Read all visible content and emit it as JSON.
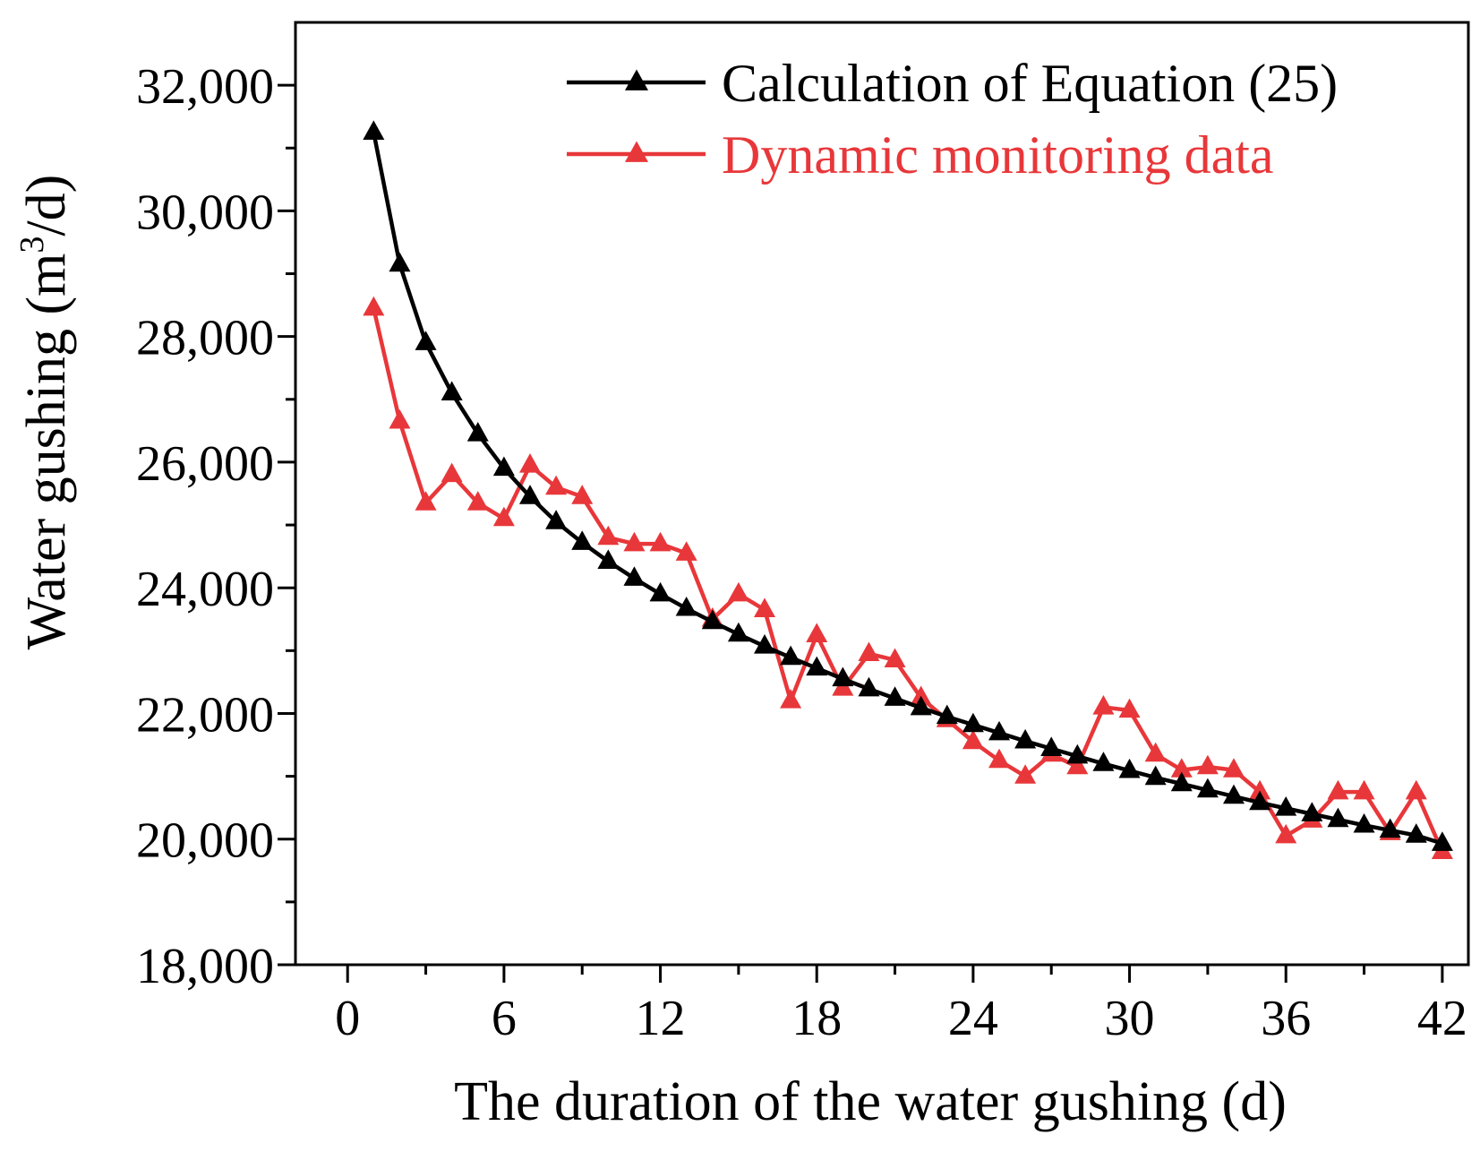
{
  "chart_data": {
    "type": "line",
    "title": "",
    "xlabel": "The duration of the water gushing (d)",
    "ylabel_main": "Water gushing (m",
    "ylabel_sup": "3",
    "ylabel_tail": "/d)",
    "xlim": [
      -2,
      43
    ],
    "ylim": [
      18000,
      33000
    ],
    "x_ticks": [
      0,
      6,
      12,
      18,
      24,
      30,
      36,
      42
    ],
    "x_tick_labels": [
      "0",
      "6",
      "12",
      "18",
      "24",
      "30",
      "36",
      "42"
    ],
    "y_ticks": [
      18000,
      20000,
      22000,
      24000,
      26000,
      28000,
      30000,
      32000
    ],
    "y_tick_labels": [
      "18,000",
      "20,000",
      "22,000",
      "24,000",
      "26,000",
      "28,000",
      "30,000",
      "32,000"
    ],
    "legend_position": "top-right",
    "x": [
      1,
      2,
      3,
      4,
      5,
      6,
      7,
      8,
      9,
      10,
      11,
      12,
      13,
      14,
      15,
      16,
      17,
      18,
      19,
      20,
      21,
      22,
      23,
      24,
      25,
      26,
      27,
      28,
      29,
      30,
      31,
      32,
      33,
      34,
      35,
      36,
      37,
      38,
      39,
      40,
      41,
      42
    ],
    "series": [
      {
        "name": "Calculation of Equation (25)",
        "color": "#000000",
        "marker": "triangle",
        "values": [
          31250,
          29150,
          27900,
          27100,
          26450,
          25900,
          25450,
          25050,
          24720,
          24420,
          24150,
          23900,
          23670,
          23460,
          23260,
          23070,
          22890,
          22720,
          22550,
          22390,
          22240,
          22090,
          21950,
          21820,
          21690,
          21560,
          21440,
          21320,
          21200,
          21090,
          20980,
          20880,
          20780,
          20680,
          20580,
          20490,
          20400,
          20310,
          20220,
          20140,
          20060,
          19930
        ]
      },
      {
        "name": "Dynamic monitoring data",
        "color": "#e8373a",
        "marker": "triangle",
        "values": [
          28450,
          26650,
          25350,
          25800,
          25350,
          25100,
          25950,
          25600,
          25450,
          24800,
          24700,
          24700,
          24550,
          23500,
          23900,
          23650,
          22200,
          23250,
          22400,
          22950,
          22850,
          22250,
          21900,
          21550,
          21250,
          21000,
          21350,
          21150,
          22100,
          22050,
          21350,
          21100,
          21150,
          21100,
          20750,
          20050,
          20300,
          20750,
          20750,
          20100,
          20750,
          19800
        ]
      }
    ]
  }
}
